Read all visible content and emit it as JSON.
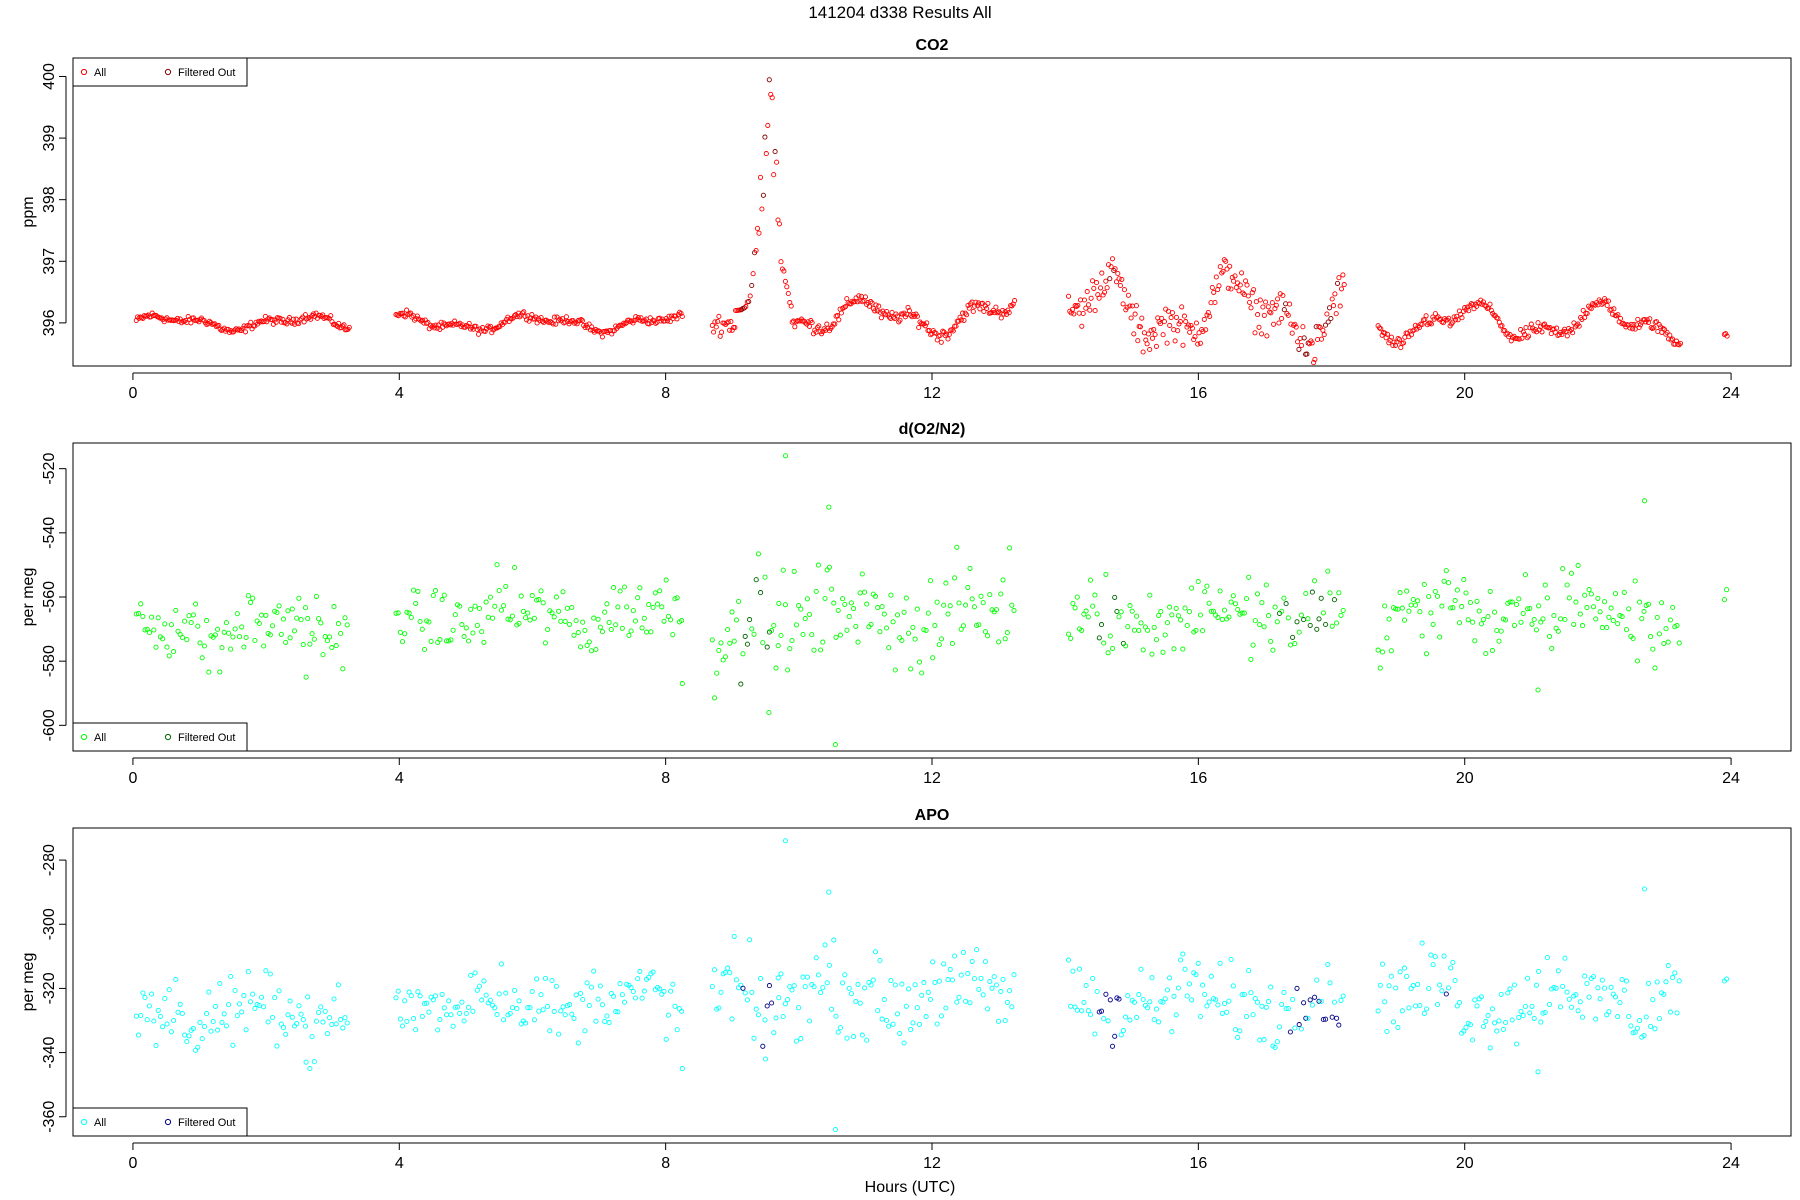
{
  "figure": {
    "title": "141204   d338   Results All",
    "xlabel": "Hours (UTC)"
  },
  "chart_data": [
    {
      "type": "scatter",
      "title": "CO2",
      "xlabel": "",
      "ylabel": "ppm",
      "xlim": [
        -0.9,
        24.9
      ],
      "ylim": [
        395.3,
        400.3
      ],
      "xticks": [
        0,
        4,
        8,
        12,
        16,
        20,
        24
      ],
      "yticks": [
        396,
        397,
        398,
        399,
        400
      ],
      "legend": {
        "position": "top-left",
        "entries": [
          "All",
          "Filtered Out"
        ]
      },
      "series": [
        {
          "name": "All",
          "color": "#ff0000"
        },
        {
          "name": "Filtered Out",
          "color": "#8b0000"
        }
      ],
      "segments": [
        {
          "x0": 0.05,
          "x1": 3.25,
          "base": 396.0,
          "wave": 0.09,
          "noise": 0.03
        },
        {
          "x0": 3.95,
          "x1": 8.25,
          "base": 396.0,
          "wave": 0.1,
          "noise": 0.03
        },
        {
          "x0": 8.7,
          "x1": 9.05,
          "base": 396.0,
          "wave": 0.12,
          "noise": 0.08
        },
        {
          "x0": 9.9,
          "x1": 13.25,
          "base": 396.1,
          "wave": 0.2,
          "noise": 0.05
        },
        {
          "x0": 14.05,
          "x1": 18.2,
          "base": 396.2,
          "wave": 0.4,
          "noise": 0.15
        },
        {
          "x0": 18.7,
          "x1": 23.25,
          "base": 396.0,
          "wave": 0.22,
          "noise": 0.05
        },
        {
          "x0": 23.9,
          "x1": 23.95,
          "base": 395.85,
          "wave": 0.0,
          "noise": 0.05
        }
      ],
      "spike": {
        "x0": 9.05,
        "x1": 9.9,
        "peak_x": 9.55,
        "peak": 400.1,
        "base": 396.2
      },
      "filtered_windows": [
        [
          9.1,
          9.7
        ],
        [
          17.2,
          18.2
        ],
        [
          14.5,
          14.8
        ]
      ]
    },
    {
      "type": "scatter",
      "title": "d(O2/N2)",
      "xlabel": "",
      "ylabel": "per meg",
      "xlim": [
        -0.9,
        24.9
      ],
      "ylim": [
        -608,
        -512
      ],
      "xticks": [
        0,
        4,
        8,
        12,
        16,
        20,
        24
      ],
      "yticks": [
        -600,
        -580,
        -560,
        -540,
        -520
      ],
      "legend": {
        "position": "bottom-left",
        "entries": [
          "All",
          "Filtered Out"
        ]
      },
      "series": [
        {
          "name": "All",
          "color": "#00ff00"
        },
        {
          "name": "Filtered Out",
          "color": "#006400"
        }
      ],
      "segments": [
        {
          "x0": 0.05,
          "x1": 3.25,
          "base": -570.0,
          "wave": 3.0,
          "noise": 5.0
        },
        {
          "x0": 3.95,
          "x1": 8.25,
          "base": -566.0,
          "wave": 3.0,
          "noise": 5.0
        },
        {
          "x0": 8.7,
          "x1": 9.7,
          "base": -572.0,
          "wave": 5.0,
          "noise": 9.0
        },
        {
          "x0": 9.7,
          "x1": 13.25,
          "base": -566.0,
          "wave": 3.0,
          "noise": 7.0
        },
        {
          "x0": 14.05,
          "x1": 18.2,
          "base": -566.0,
          "wave": 3.0,
          "noise": 6.0
        },
        {
          "x0": 18.7,
          "x1": 23.25,
          "base": -565.0,
          "wave": 4.0,
          "noise": 6.0
        },
        {
          "x0": 23.9,
          "x1": 23.95,
          "base": -559.0,
          "wave": 0.0,
          "noise": 1.0
        }
      ],
      "outliers": [
        [
          9.8,
          -516
        ],
        [
          10.45,
          -532
        ],
        [
          10.55,
          -606
        ],
        [
          9.55,
          -596
        ],
        [
          22.7,
          -530
        ],
        [
          21.1,
          -589
        ],
        [
          8.25,
          -587
        ],
        [
          2.6,
          -585
        ]
      ],
      "filtered_windows": [
        [
          9.05,
          9.65
        ],
        [
          14.5,
          14.9
        ],
        [
          17.2,
          18.2
        ]
      ]
    },
    {
      "type": "scatter",
      "title": "APO",
      "xlabel": "Hours (UTC)",
      "ylabel": "per meg",
      "xlim": [
        -0.9,
        24.9
      ],
      "ylim": [
        -366,
        -270
      ],
      "xticks": [
        0,
        4,
        8,
        12,
        16,
        20,
        24
      ],
      "yticks": [
        -360,
        -340,
        -320,
        -300,
        -280
      ],
      "legend": {
        "position": "bottom-left",
        "entries": [
          "All",
          "Filtered Out"
        ]
      },
      "series": [
        {
          "name": "All",
          "color": "#00ffff"
        },
        {
          "name": "Filtered Out",
          "color": "#00008b"
        }
      ],
      "segments": [
        {
          "x0": 0.05,
          "x1": 3.25,
          "base": -328.0,
          "wave": 3.0,
          "noise": 5.0
        },
        {
          "x0": 3.95,
          "x1": 8.25,
          "base": -324.0,
          "wave": 3.0,
          "noise": 5.0
        },
        {
          "x0": 8.7,
          "x1": 9.7,
          "base": -324.0,
          "wave": 4.0,
          "noise": 7.0
        },
        {
          "x0": 9.7,
          "x1": 13.25,
          "base": -322.0,
          "wave": 3.0,
          "noise": 6.0
        },
        {
          "x0": 14.05,
          "x1": 18.2,
          "base": -324.0,
          "wave": 3.0,
          "noise": 6.0
        },
        {
          "x0": 18.7,
          "x1": 23.25,
          "base": -323.0,
          "wave": 4.0,
          "noise": 6.0
        },
        {
          "x0": 23.9,
          "x1": 23.95,
          "base": -318.0,
          "wave": 0.0,
          "noise": 1.0
        }
      ],
      "outliers": [
        [
          9.8,
          -274
        ],
        [
          10.45,
          -290
        ],
        [
          10.55,
          -364
        ],
        [
          9.5,
          -342
        ],
        [
          22.7,
          -289
        ],
        [
          21.1,
          -346
        ],
        [
          8.25,
          -345
        ],
        [
          2.6,
          -343
        ]
      ],
      "filtered_windows": [
        [
          9.05,
          9.6
        ],
        [
          14.5,
          14.95
        ],
        [
          17.2,
          18.2
        ],
        [
          19.7,
          19.75
        ]
      ]
    }
  ]
}
